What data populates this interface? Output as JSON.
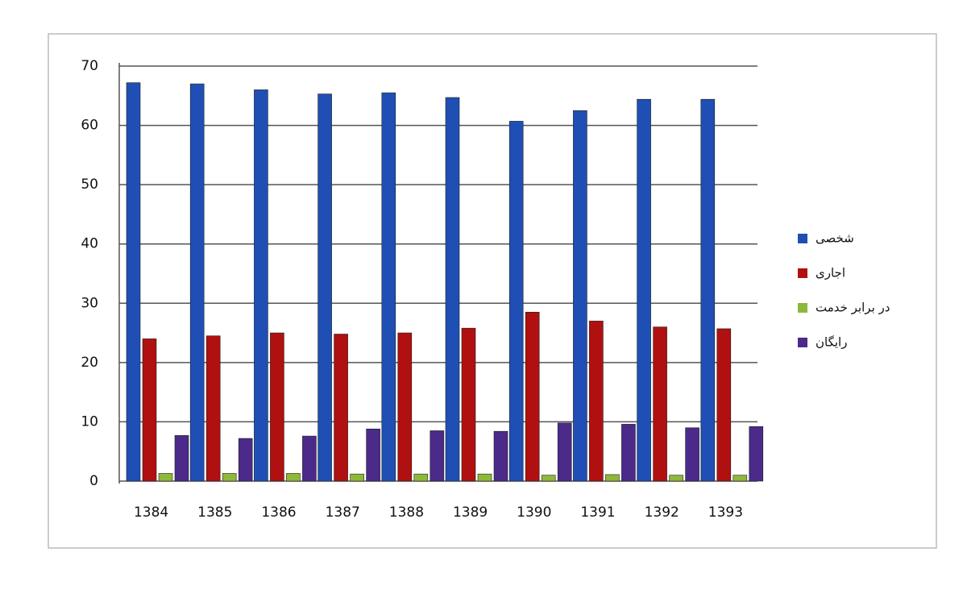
{
  "chart_data": {
    "type": "bar",
    "categories": [
      "1384",
      "1385",
      "1386",
      "1387",
      "1388",
      "1389",
      "1390",
      "1391",
      "1392",
      "1393"
    ],
    "series": [
      {
        "name": "شخصی",
        "color": "#1f4fb4",
        "values": [
          67.2,
          67,
          66,
          65.3,
          65.5,
          64.7,
          60.7,
          62.5,
          64.4,
          64.4
        ]
      },
      {
        "name": "اجاری",
        "color": "#b01010",
        "values": [
          24,
          24.5,
          25,
          24.8,
          25,
          25.8,
          28.5,
          27,
          26,
          25.7
        ]
      },
      {
        "name": "در برابر خدمت",
        "color": "#8db83a",
        "values": [
          1.3,
          1.3,
          1.3,
          1.2,
          1.2,
          1.2,
          1.0,
          1.1,
          1.0,
          1.0
        ]
      },
      {
        "name": "رایگان",
        "color": "#4b2a8a",
        "values": [
          7.7,
          7.2,
          7.6,
          8.8,
          8.5,
          8.4,
          9.8,
          9.6,
          9.0,
          9.2
        ]
      }
    ],
    "ylim": [
      0,
      70
    ],
    "yticks": [
      0,
      10,
      20,
      30,
      40,
      50,
      60,
      70
    ],
    "grid": true,
    "legend": "right"
  }
}
